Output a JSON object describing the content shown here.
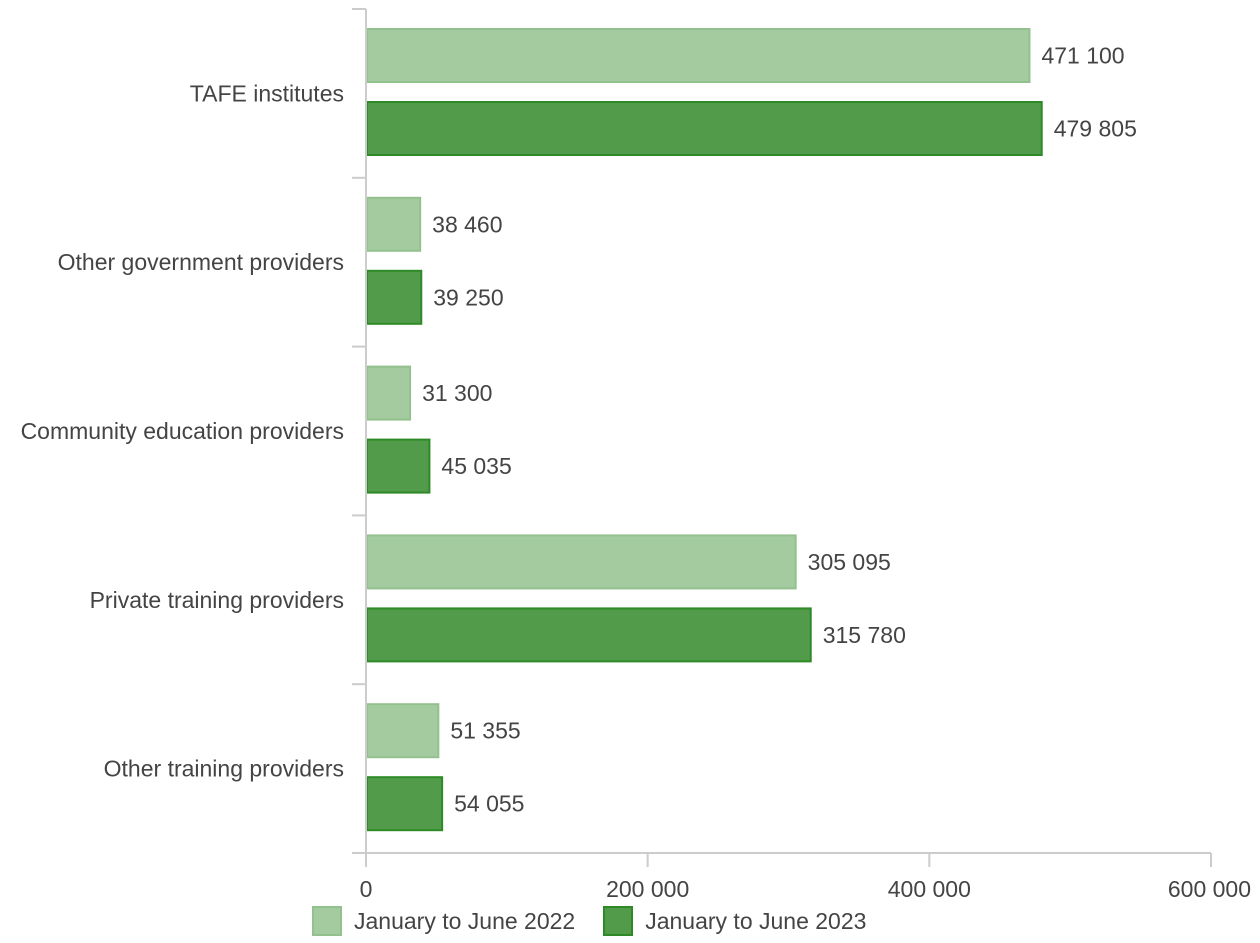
{
  "chart_data": {
    "type": "bar",
    "orientation": "horizontal",
    "title": "",
    "xlabel": "",
    "ylabel": "",
    "categories": [
      "TAFE institutes",
      "Other government providers",
      "Community education providers",
      "Private training providers",
      "Other training providers"
    ],
    "series": [
      {
        "name": "January to June 2022",
        "color": "#a3cb9f",
        "stroke": "#93c18e",
        "values": [
          471100,
          38460,
          31300,
          305095,
          51355
        ],
        "labels": [
          "471 100",
          "38 460",
          "31 300",
          "305 095",
          "51 355"
        ]
      },
      {
        "name": "January to June 2023",
        "color": "#519b4a",
        "stroke": "#2e8a26",
        "values": [
          479805,
          39250,
          45035,
          315780,
          54055
        ],
        "labels": [
          "479 805",
          "39 250",
          "45 035",
          "315 780",
          "54 055"
        ]
      }
    ],
    "xlim": [
      0,
      600000
    ],
    "xticks": [
      0,
      200000,
      400000,
      600000
    ],
    "xtick_labels": [
      "0",
      "200 000",
      "400 000",
      "600 000"
    ],
    "grid": false,
    "legend_position": "bottom"
  }
}
